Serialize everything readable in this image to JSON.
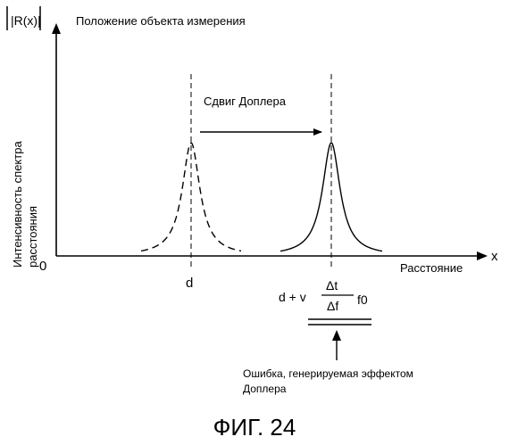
{
  "y_axis_label": "|R(x)|",
  "top_label": "Положение объекта измерения",
  "ylabel_line1": "Интенсивность спектра",
  "ylabel_line2": "расстояния",
  "shift_label": "Сдвиг Доплера",
  "origin_label": "0",
  "x_axis_symbol": "x",
  "xlabel": "Расстояние",
  "d_label": "d",
  "formula": {
    "prefix": "d + v",
    "numerator": "Δt",
    "denominator": "Δf",
    "suffix": "f0"
  },
  "error_label_line1": "Ошибка, генерируемая эффектом",
  "error_label_line2": "Доплера",
  "figure_caption": "ФИГ. 24",
  "peaks": [
    {
      "position": "d",
      "style": "dashed"
    },
    {
      "position": "d + vΔt/Δf·f0",
      "style": "solid"
    }
  ]
}
